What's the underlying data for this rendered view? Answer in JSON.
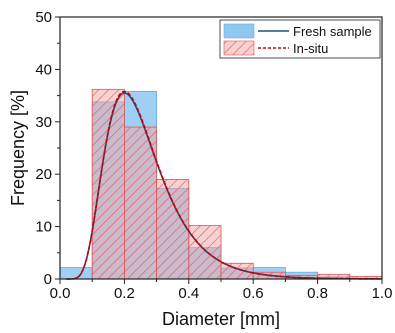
{
  "chart_data": {
    "type": "bar",
    "xlabel": "Diameter [mm]",
    "ylabel": "Frequency [%]",
    "xlim": [
      0.0,
      1.0
    ],
    "ylim": [
      0,
      50
    ],
    "x_ticks": [
      "0.0",
      "0.2",
      "0.4",
      "0.6",
      "0.8",
      "1.0"
    ],
    "y_ticks": [
      "0",
      "10",
      "20",
      "30",
      "40",
      "50"
    ],
    "grid": false,
    "legend_position": "top-right",
    "bin_edges": [
      0.0,
      0.1,
      0.2,
      0.3,
      0.4,
      0.5,
      0.6,
      0.7,
      0.8,
      0.9,
      1.0
    ],
    "series": [
      {
        "name": "Fresh sample",
        "kind": "histogram",
        "values": [
          2.2,
          33.8,
          35.8,
          17.3,
          6.0,
          2.1,
          2.2,
          1.3,
          0.4,
          0.0
        ],
        "fill": "#8ec8f2",
        "fit_line": {
          "color": "#1f4e79",
          "style": "solid",
          "mode": 0.2,
          "peak": 35.5
        }
      },
      {
        "name": "In-situ",
        "kind": "histogram",
        "values": [
          0.0,
          36.2,
          29.0,
          19.0,
          10.2,
          3.0,
          1.3,
          0.7,
          0.9,
          0.5
        ],
        "fill": "#f5a3a3",
        "hatch": "#e05555",
        "fit_line": {
          "color": "#cc0000",
          "style": "dashed",
          "mode": 0.2,
          "peak": 35.8
        }
      }
    ]
  }
}
